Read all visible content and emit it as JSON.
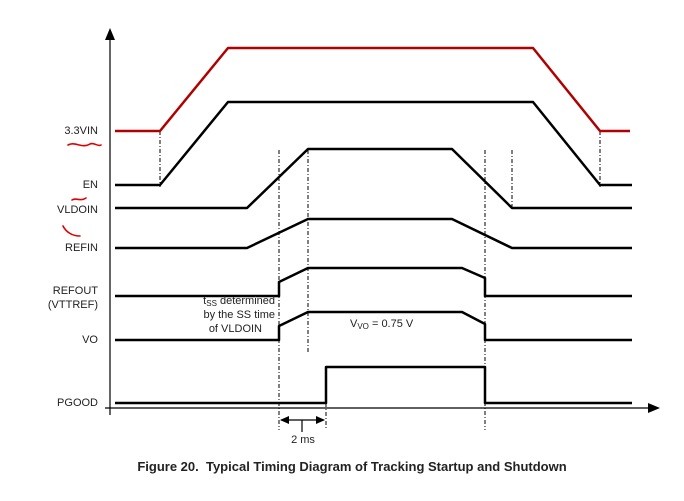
{
  "signals": [
    {
      "label": "3.3VIN"
    },
    {
      "label": "EN"
    },
    {
      "label": "VLDOIN"
    },
    {
      "label": "REFIN"
    },
    {
      "label": "REFOUT",
      "sublabel": "(VTTREF)"
    },
    {
      "label": "VO"
    },
    {
      "label": "PGOOD"
    }
  ],
  "annotations": {
    "tss": {
      "symbol": "t",
      "subscript": "SS",
      "line1_rest": " determined",
      "line2": "by the SS time",
      "line3": "of VLDOIN"
    },
    "vvo": {
      "symbol": "V",
      "subscript": "VO",
      "rest": " = 0.75 V"
    },
    "interval": "2 ms"
  },
  "caption": "Figure 20.  Typical Timing Diagram of Tracking Startup and Shutdown"
}
